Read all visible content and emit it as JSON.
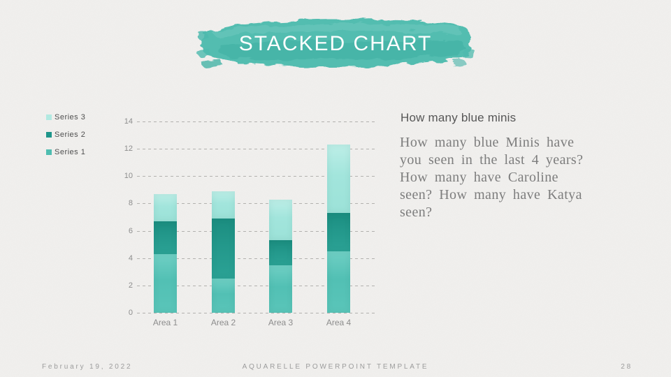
{
  "slide": {
    "title": "STACKED CHART",
    "footer": {
      "date": "February 19, 2022",
      "template_name": "AQUARELLE POWERPOINT TEMPLATE",
      "page_number": "28"
    }
  },
  "content": {
    "heading": "How many blue minis",
    "body": "How many blue Minis have\nyou seen in the last 4 years?\nHow many have Caroline\nseen? How many have Katya\nseen?"
  },
  "chart_data": {
    "type": "bar",
    "stacked": true,
    "title": "",
    "xlabel": "",
    "ylabel": "",
    "categories": [
      "Area 1",
      "Area 2",
      "Area 3",
      "Area 4"
    ],
    "series": [
      {
        "name": "Series 1",
        "color": "#4fbdb0",
        "color_top": "#6fcfc4",
        "color_mid": "#52c0b4",
        "color_bottom": "#5ac5b9",
        "values": [
          4.3,
          2.5,
          3.5,
          4.5
        ]
      },
      {
        "name": "Series 2",
        "color": "#1e958a",
        "color_top": "#1b8d80",
        "color_mid": "#23988b",
        "color_bottom": "#2ba295",
        "values": [
          2.4,
          4.4,
          1.8,
          2.8
        ]
      },
      {
        "name": "Series 3",
        "color": "#b2e9e1",
        "color_top": "#bdeee7",
        "color_mid": "#a2e5dc",
        "color_bottom": "#9ce2d8",
        "values": [
          2.0,
          2.0,
          3.0,
          5.0
        ]
      }
    ],
    "legend_order": [
      "Series 3",
      "Series 2",
      "Series 1"
    ],
    "ylim": [
      0,
      14
    ],
    "yticks": [
      0,
      2,
      4,
      6,
      8,
      10,
      12,
      14
    ],
    "grid": "dashed-horizontal",
    "legend_position": "left-top"
  },
  "colors": {
    "background": "#f1f0ee",
    "brush_teal": "#4dbaae",
    "brush_dark": "#35a99c",
    "brush_light": "#7fd2c7",
    "title_text": "#ffffff",
    "axis_text": "#8c8c8c",
    "legend_text": "#4f4f4f",
    "heading_text": "#565656",
    "body_text": "#7d7d7d",
    "footer_text": "#9c9c9c",
    "gridline": "#b2b1ae"
  }
}
